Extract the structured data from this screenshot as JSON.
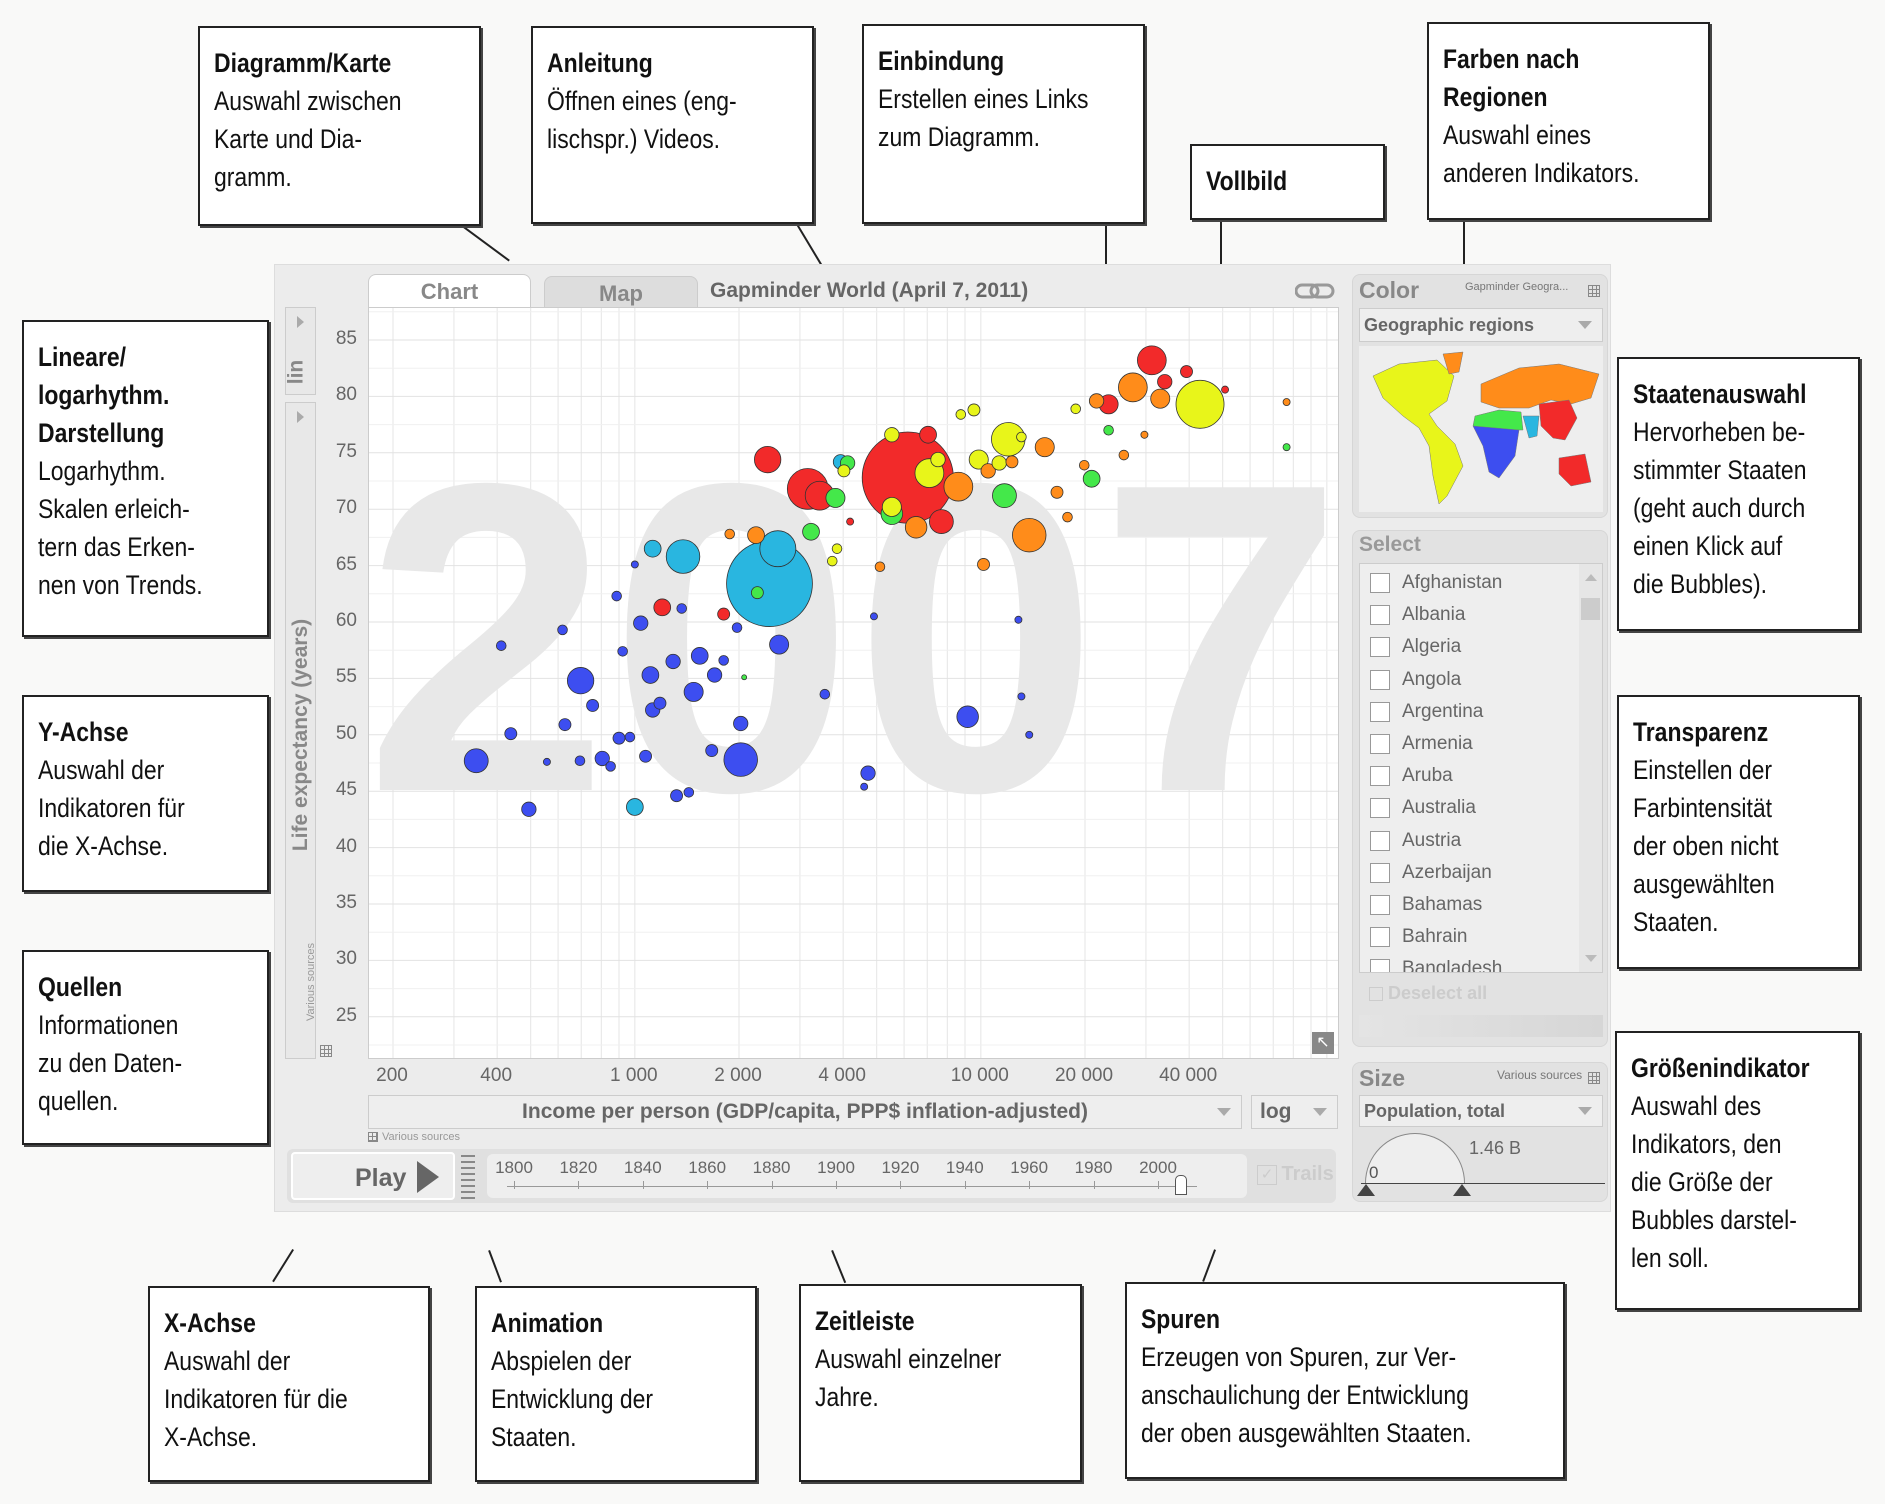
{
  "app": {
    "tabs": [
      {
        "label": "Chart",
        "active": true
      },
      {
        "label": "Map",
        "active": false
      }
    ],
    "title": "Gapminder World (April 7, 2011)",
    "link_icon": "link-icon",
    "fullscreen_icon": "fullscreen-arrow-icon",
    "y_scale": "lin",
    "y_label": "Life expectancy (years)",
    "y_source": "Various sources",
    "x_label": "Income per person (GDP/capita, PPP$ inflation-adjusted)",
    "x_scale": "log",
    "x_source": "Various sources",
    "year_watermark": "2007",
    "play_label": "Play",
    "trails_label": "Trails",
    "timeline": {
      "years": [
        "1800",
        "1820",
        "1840",
        "1860",
        "1880",
        "1900",
        "1920",
        "1940",
        "1960",
        "1980",
        "2000"
      ],
      "current": 2007,
      "min": 1800,
      "max": 2008
    }
  },
  "color_panel": {
    "title": "Color",
    "source": "Gapminder Geogra...",
    "selected": "Geographic regions",
    "region_colors": [
      "#e8f51a",
      "#ff8c1a",
      "#44e84a",
      "#3d4ef0",
      "#29b6e0",
      "#f22a2a"
    ]
  },
  "select_panel": {
    "title": "Select",
    "countries": [
      "Afghanistan",
      "Albania",
      "Algeria",
      "Angola",
      "Argentina",
      "Armenia",
      "Aruba",
      "Australia",
      "Austria",
      "Azerbaijan",
      "Bahamas",
      "Bahrain",
      "Bangladesh"
    ],
    "deselect_label": "Deselect all"
  },
  "size_panel": {
    "title": "Size",
    "source": "Various sources",
    "selected": "Population, total",
    "min_label": "0",
    "max_label": "1.46 B"
  },
  "chart_data": {
    "type": "scatter",
    "title": "Gapminder World (April 7, 2011)",
    "xlabel": "Income per person (GDP/capita, PPP$ inflation-adjusted)",
    "ylabel": "Life expectancy (years)",
    "x_scale": "log",
    "xlim": [
      150,
      110000
    ],
    "ylim": [
      22,
      88
    ],
    "x_ticks": [
      "200",
      "400",
      "1 000",
      "2 000",
      "4 000",
      "10 000",
      "20 000",
      "40 000"
    ],
    "x_tick_values": [
      200,
      400,
      1000,
      2000,
      4000,
      10000,
      20000,
      40000
    ],
    "y_ticks": [
      "85",
      "80",
      "75",
      "70",
      "65",
      "60",
      "55",
      "50",
      "45",
      "40",
      "35",
      "30",
      "25"
    ],
    "grid": true,
    "year": "2007",
    "point_format": [
      "income",
      "life_expectancy",
      "population_millions"
    ],
    "series": [
      {
        "color": "#3d4ef0",
        "points": [
          [
            348,
            47.7,
            91
          ],
          [
            411,
            57.9,
            15
          ],
          [
            438,
            50.1,
            23
          ],
          [
            494,
            43.4,
            33
          ],
          [
            557,
            47.6,
            8
          ],
          [
            618,
            59.3,
            15
          ],
          [
            628,
            50.9,
            23
          ],
          [
            697,
            54.8,
            111
          ],
          [
            694,
            47.7,
            15
          ],
          [
            755,
            52.6,
            23
          ],
          [
            805,
            47.9,
            33
          ],
          [
            851,
            47.2,
            15
          ],
          [
            886,
            62.3,
            15
          ],
          [
            900,
            49.7,
            23
          ],
          [
            922,
            57.4,
            15
          ],
          [
            968,
            49.8,
            15
          ],
          [
            1000,
            65.1,
            8
          ],
          [
            1040,
            59.9,
            33
          ],
          [
            1074,
            48.1,
            23
          ],
          [
            1109,
            55.3,
            45
          ],
          [
            1126,
            52.2,
            33
          ],
          [
            1182,
            52.8,
            23
          ],
          [
            1290,
            56.5,
            33
          ],
          [
            1320,
            44.6,
            23
          ],
          [
            1366,
            61.2,
            15
          ],
          [
            1432,
            44.9,
            15
          ],
          [
            1479,
            53.8,
            58
          ],
          [
            1540,
            57.0,
            45
          ],
          [
            1668,
            48.6,
            23
          ],
          [
            1700,
            55.3,
            33
          ],
          [
            1806,
            56.6,
            15
          ],
          [
            1974,
            59.5,
            15
          ],
          [
            2023,
            51.0,
            33
          ],
          [
            2023,
            47.8,
            179
          ],
          [
            2612,
            58.0,
            58
          ],
          [
            3540,
            53.6,
            15
          ],
          [
            4720,
            46.6,
            33
          ],
          [
            4600,
            45.4,
            8
          ],
          [
            4910,
            60.5,
            8
          ],
          [
            9160,
            51.6,
            74
          ],
          [
            12840,
            60.2,
            8
          ],
          [
            13100,
            53.4,
            8
          ],
          [
            13800,
            50.0,
            8
          ]
        ]
      },
      {
        "color": "#29b6e0",
        "points": [
          [
            2450,
            63.4,
            1170
          ],
          [
            1378,
            65.8,
            179
          ],
          [
            1126,
            66.5,
            45
          ],
          [
            1000,
            43.6,
            45
          ],
          [
            2590,
            66.5,
            206
          ],
          [
            3930,
            74.2,
            33
          ]
        ]
      },
      {
        "color": "#f22a2a",
        "points": [
          [
            6150,
            72.8,
            1320
          ],
          [
            2420,
            74.4,
            111
          ],
          [
            31200,
            83.2,
            132
          ],
          [
            3160,
            71.8,
            264
          ],
          [
            3420,
            71.2,
            132
          ],
          [
            1200,
            61.3,
            45
          ],
          [
            1806,
            60.7,
            23
          ],
          [
            4190,
            68.9,
            8
          ],
          [
            7690,
            68.9,
            91
          ],
          [
            23400,
            79.3,
            58
          ],
          [
            34000,
            81.3,
            33
          ],
          [
            39300,
            82.2,
            23
          ],
          [
            50800,
            80.6,
            8
          ],
          [
            7040,
            76.6,
            45
          ]
        ]
      },
      {
        "color": "#ff8c1a",
        "points": [
          [
            13800,
            67.7,
            179
          ],
          [
            10180,
            65.1,
            23
          ],
          [
            6500,
            68.4,
            74
          ],
          [
            8610,
            72.0,
            132
          ],
          [
            27500,
            80.8,
            132
          ],
          [
            33000,
            79.8,
            58
          ],
          [
            21600,
            79.6,
            33
          ],
          [
            15300,
            75.5,
            58
          ],
          [
            16600,
            71.5,
            23
          ],
          [
            17800,
            69.3,
            15
          ],
          [
            25900,
            74.8,
            15
          ],
          [
            2240,
            67.7,
            45
          ],
          [
            1880,
            67.8,
            15
          ],
          [
            5110,
            64.9,
            15
          ],
          [
            76500,
            79.5,
            8
          ],
          [
            29700,
            76.6,
            8
          ],
          [
            19900,
            73.9,
            15
          ],
          [
            12300,
            74.2,
            23
          ],
          [
            10500,
            73.4,
            33
          ]
        ]
      },
      {
        "color": "#e8f51a",
        "points": [
          [
            43000,
            79.3,
            366
          ],
          [
            12000,
            76.2,
            179
          ],
          [
            7100,
            73.2,
            132
          ],
          [
            5530,
            70.2,
            58
          ],
          [
            5530,
            76.6,
            33
          ],
          [
            9550,
            78.8,
            23
          ],
          [
            8750,
            78.4,
            15
          ],
          [
            9860,
            74.4,
            58
          ],
          [
            11300,
            74.1,
            33
          ],
          [
            13100,
            76.4,
            15
          ],
          [
            3720,
            65.4,
            15
          ],
          [
            3840,
            66.5,
            15
          ],
          [
            4020,
            73.4,
            23
          ],
          [
            7520,
            74.4,
            33
          ],
          [
            18800,
            78.9,
            15
          ]
        ]
      },
      {
        "color": "#44e84a",
        "points": [
          [
            11700,
            71.2,
            91
          ],
          [
            20900,
            72.7,
            45
          ],
          [
            3800,
            71.0,
            58
          ],
          [
            4120,
            74.1,
            33
          ],
          [
            3230,
            68.0,
            45
          ],
          [
            5530,
            69.6,
            74
          ],
          [
            2260,
            62.6,
            23
          ],
          [
            2070,
            55.1,
            4
          ],
          [
            76500,
            75.5,
            8
          ],
          [
            23400,
            77.0,
            15
          ]
        ]
      }
    ]
  },
  "callouts": [
    {
      "title": "Diagramm/Karte",
      "body": "Auswahl zwischen\nKarte und Dia-\ngramm."
    },
    {
      "title": "Anleitung",
      "body": "Öffnen eines (eng-\nlischspr.) Videos."
    },
    {
      "title": "Einbindung",
      "body": "Erstellen eines Links\nzum Diagramm."
    },
    {
      "title": "Vollbild",
      "body": ""
    },
    {
      "title": "Farben nach\nRegionen",
      "body": "Auswahl eines\nanderen Indikators."
    },
    {
      "title": "Lineare/\nlogarhythm.\nDarstellung",
      "body": "Logarhythm.\nSkalen erleich-\ntern das Erken-\nnen von Trends."
    },
    {
      "title": "Y-Achse",
      "body": "Auswahl der\nIndikatoren für\ndie X-Achse."
    },
    {
      "title": "Quellen",
      "body": "Informationen\nzu den Daten-\nquellen."
    },
    {
      "title": "Staatenauswahl",
      "body": "Hervorheben be-\nstimmter Staaten\n(geht auch durch\neinen Klick auf\ndie Bubbles)."
    },
    {
      "title": "Transparenz",
      "body": "Einstellen der\nFarbintensität\nder oben nicht\nausgewählten\nStaaten."
    },
    {
      "title": "Größenindikator",
      "body": "Auswahl des\nIndikators, den\ndie Größe der\nBubbles darstel-\nlen soll."
    },
    {
      "title": "X-Achse",
      "body": "Auswahl der\nIndikatoren für die\nX-Achse."
    },
    {
      "title": "Animation",
      "body": "Abspielen der\nEntwicklung der\nStaaten."
    },
    {
      "title": "Zeitleiste",
      "body": "Auswahl einzelner\nJahre."
    },
    {
      "title": "Spuren",
      "body": "Erzeugen von Spuren, zur Ver-\nanschaulichung der Entwicklung\nder oben ausgewählten Staaten."
    }
  ]
}
